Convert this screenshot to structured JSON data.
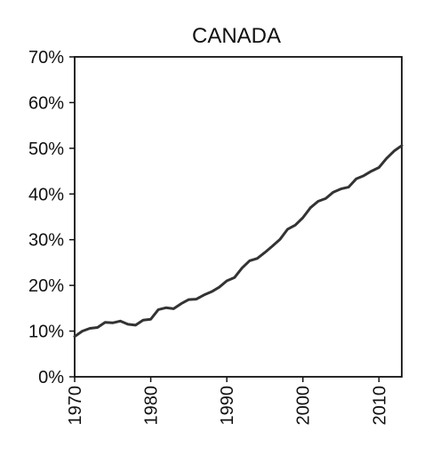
{
  "chart_data": {
    "type": "line",
    "title": "CANADA",
    "xlabel": "",
    "ylabel": "",
    "xlim": [
      1970,
      2013
    ],
    "ylim": [
      0,
      70
    ],
    "y_ticks": [
      0,
      10,
      20,
      30,
      40,
      50,
      60,
      70
    ],
    "y_tick_labels": [
      "0%",
      "10%",
      "20%",
      "30%",
      "40%",
      "50%",
      "60%",
      "70%"
    ],
    "x_ticks": [
      1970,
      1980,
      1990,
      2000,
      2010
    ],
    "x_tick_labels": [
      "1970",
      "1980",
      "1990",
      "2000",
      "2010"
    ],
    "grid": false,
    "line_color": "#333333",
    "series": [
      {
        "x": [
          1970,
          1971,
          1972,
          1973,
          1974,
          1975,
          1976,
          1977,
          1978,
          1979,
          1980,
          1981,
          1982,
          1983,
          1984,
          1985,
          1986,
          1987,
          1988,
          1989,
          1990,
          1991,
          1992,
          1993,
          1994,
          1995,
          1996,
          1997,
          1998,
          1999,
          2000,
          2001,
          2002,
          2003,
          2004,
          2005,
          2006,
          2007,
          2008,
          2009,
          2010,
          2011,
          2012,
          2013
        ],
        "values": [
          8.8,
          10.0,
          10.6,
          10.8,
          11.9,
          11.8,
          12.2,
          11.5,
          11.3,
          12.4,
          12.6,
          14.7,
          15.1,
          14.9,
          16.0,
          16.9,
          17.0,
          17.9,
          18.6,
          19.6,
          21.0,
          21.7,
          23.8,
          25.4,
          25.9,
          27.2,
          28.6,
          30.1,
          32.3,
          33.2,
          34.8,
          37.0,
          38.4,
          39.0,
          40.4,
          41.1,
          41.5,
          43.3,
          44.0,
          45.0,
          45.8,
          47.8,
          49.4,
          50.6
        ]
      }
    ]
  }
}
